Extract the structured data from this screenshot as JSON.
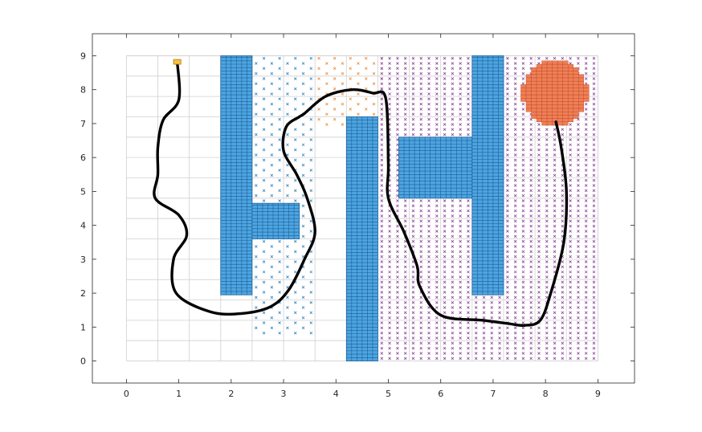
{
  "chart_data": {
    "type": "scatter",
    "title": "",
    "xlabel": "",
    "ylabel": "",
    "xlim": [
      -0.65,
      9.7
    ],
    "ylim": [
      -0.65,
      9.65
    ],
    "x_ticks": [
      "0",
      "1",
      "2",
      "3",
      "4",
      "5",
      "6",
      "7",
      "8",
      "9"
    ],
    "y_ticks": [
      "0",
      "1",
      "2",
      "3",
      "4",
      "5",
      "6",
      "7",
      "8",
      "9"
    ],
    "grid": true,
    "grid_extent": {
      "x": [
        0,
        9
      ],
      "y": [
        0,
        9
      ],
      "step": 0.6
    },
    "obstacles": [
      {
        "x": [
          1.8,
          2.4
        ],
        "y": [
          1.95,
          9.0
        ]
      },
      {
        "x": [
          2.4,
          3.3
        ],
        "y": [
          3.6,
          4.65
        ]
      },
      {
        "x": [
          4.2,
          4.8
        ],
        "y": [
          0.0,
          7.2
        ]
      },
      {
        "x": [
          5.2,
          6.6
        ],
        "y": [
          4.8,
          6.6
        ]
      },
      {
        "x": [
          6.6,
          7.2
        ],
        "y": [
          1.95,
          9.0
        ]
      }
    ],
    "start": {
      "x": 0.97,
      "y": 8.82
    },
    "goal_region": {
      "center": [
        8.18,
        7.9
      ],
      "radius": 1.05
    },
    "explored_regions": [
      {
        "name": "early",
        "x": [
          2.4,
          3.6
        ],
        "y": [
          0.75,
          9.0
        ]
      },
      {
        "name": "middle",
        "x": [
          3.6,
          5.0
        ],
        "y": [
          6.9,
          9.0
        ]
      },
      {
        "name": "late",
        "x": [
          4.8,
          9.0
        ],
        "y": [
          0.0,
          9.0
        ]
      }
    ],
    "path": {
      "x": [
        0.97,
        1.0,
        0.7,
        0.6,
        0.6,
        0.55,
        1.0,
        1.15,
        0.9,
        0.95,
        1.6,
        2.2,
        2.75,
        3.1,
        3.4,
        3.6,
        3.45,
        3.25,
        3.0,
        3.05,
        3.3,
        3.4,
        3.8,
        4.3,
        4.7,
        4.95,
        5.0,
        5.0,
        5.3,
        5.55,
        5.6,
        6.0,
        6.8,
        7.3,
        7.6,
        7.9,
        8.1,
        8.35,
        8.4,
        8.3,
        8.2
      ],
      "y": [
        8.82,
        7.7,
        7.1,
        6.3,
        5.5,
        4.8,
        4.3,
        3.7,
        3.0,
        2.0,
        1.45,
        1.4,
        1.6,
        2.1,
        3.0,
        3.8,
        4.8,
        5.5,
        6.2,
        6.9,
        7.2,
        7.3,
        7.8,
        8.0,
        7.9,
        7.75,
        5.8,
        4.8,
        3.8,
        2.8,
        2.2,
        1.35,
        1.2,
        1.1,
        1.05,
        1.2,
        2.0,
        3.5,
        5.0,
        6.3,
        7.05
      ]
    },
    "colors": {
      "obstacle_fill": "#4da5e0",
      "obstacle_grid": "#1d5f99",
      "goal_fill": "#ee7f57",
      "goal_grid": "#c0451d",
      "start_fill": "#f5c23e",
      "marker_early": "#1f77b4",
      "marker_middle": "#e3812a",
      "marker_late": "#7e2f8e",
      "path": "#000000",
      "grid": "#d0d0d0"
    }
  }
}
